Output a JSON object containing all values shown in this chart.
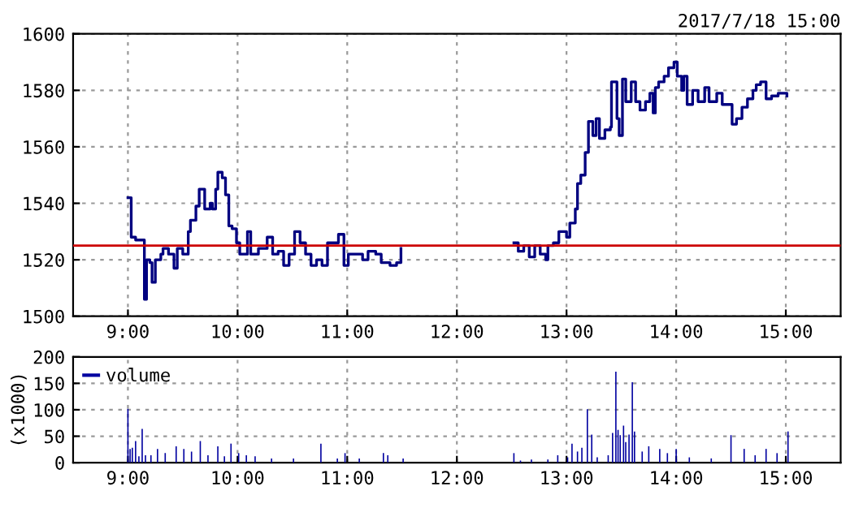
{
  "chart_data": [
    {
      "type": "step",
      "subtitle": "2017/7/18 15:00",
      "xlim": [
        8.5,
        15.5
      ],
      "ylim": [
        1500,
        1600
      ],
      "xticks": [
        {
          "value": 9,
          "label": "9:00"
        },
        {
          "value": 10,
          "label": "10:00"
        },
        {
          "value": 11,
          "label": "11:00"
        },
        {
          "value": 12,
          "label": "12:00"
        },
        {
          "value": 13,
          "label": "13:00"
        },
        {
          "value": 14,
          "label": "14:00"
        },
        {
          "value": 15,
          "label": "15:00"
        }
      ],
      "yticks": [
        1500,
        1520,
        1540,
        1560,
        1580,
        1600
      ],
      "grid": true,
      "line_style": "solid",
      "ref_lines": [
        {
          "axis": "y",
          "value": 1525,
          "color": "#cc0000"
        }
      ],
      "series": [
        {
          "color": "#000080",
          "x": [
            9.0,
            9.03,
            9.07,
            9.14,
            9.15,
            9.17,
            9.2,
            9.22,
            9.25,
            9.3,
            9.32,
            9.37,
            9.42,
            9.45,
            9.5,
            9.55,
            9.57,
            9.62,
            9.65,
            9.7,
            9.75,
            9.77,
            9.8,
            9.82,
            9.86,
            9.89,
            9.92,
            9.95,
            9.99,
            10.02,
            10.09,
            10.12,
            10.19,
            10.27,
            10.32,
            10.37,
            10.42,
            10.47,
            10.52,
            10.57,
            10.62,
            10.67,
            10.72,
            10.77,
            10.82,
            10.87,
            10.92,
            10.97,
            11.01,
            11.09,
            11.14,
            11.19,
            11.26,
            11.31,
            11.39,
            11.45,
            11.49
          ],
          "values": [
            1542,
            1528,
            1527,
            1527,
            1506,
            1520,
            1519,
            1512,
            1520,
            1522,
            1524,
            1522,
            1517,
            1524,
            1522,
            1530,
            1534,
            1539,
            1545,
            1538,
            1540,
            1538,
            1545,
            1551,
            1549,
            1543,
            1532,
            1531,
            1526,
            1522,
            1530,
            1522,
            1524,
            1528,
            1522,
            1523,
            1518,
            1522,
            1530,
            1526,
            1522,
            1518,
            1520,
            1518,
            1526,
            1526,
            1529,
            1518,
            1522,
            1522,
            1520,
            1523,
            1522,
            1519,
            1518,
            1519,
            1524
          ]
        },
        {
          "color": "#000080",
          "x": [
            12.52,
            12.56,
            12.61,
            12.66,
            12.71,
            12.76,
            12.81,
            12.83,
            12.88,
            12.93,
            13.0,
            13.03,
            13.08,
            13.1,
            13.13,
            13.17,
            13.2,
            13.24,
            13.27,
            13.3,
            13.35,
            13.4,
            13.41,
            13.46,
            13.48,
            13.51,
            13.54,
            13.59,
            13.63,
            13.67,
            13.72,
            13.76,
            13.79,
            13.81,
            13.84,
            13.89,
            13.93,
            13.98,
            14.01,
            14.05,
            14.07,
            14.1,
            14.15,
            14.2,
            14.26,
            14.3,
            14.37,
            14.42,
            14.47,
            14.51,
            14.55,
            14.6,
            14.65,
            14.7,
            14.73,
            14.77,
            14.82,
            14.87,
            14.93,
            15.01
          ],
          "values": [
            1526,
            1523,
            1525,
            1521,
            1525,
            1522,
            1520,
            1525,
            1526,
            1530,
            1528,
            1533,
            1538,
            1547,
            1550,
            1558,
            1569,
            1564,
            1570,
            1563,
            1566,
            1567,
            1583,
            1570,
            1564,
            1584,
            1576,
            1583,
            1576,
            1573,
            1576,
            1579,
            1572,
            1581,
            1583,
            1585,
            1588,
            1590,
            1585,
            1580,
            1585,
            1575,
            1580,
            1576,
            1581,
            1576,
            1579,
            1575,
            1575,
            1568,
            1570,
            1574,
            1577,
            1580,
            1582,
            1583,
            1577,
            1578,
            1579,
            1578
          ]
        }
      ]
    },
    {
      "type": "bar",
      "ylabel": "(x1000)",
      "xlim": [
        8.5,
        15.5
      ],
      "ylim": [
        0,
        200
      ],
      "xticks": [
        {
          "value": 9,
          "label": "9:00"
        },
        {
          "value": 10,
          "label": "10:00"
        },
        {
          "value": 11,
          "label": "11:00"
        },
        {
          "value": 12,
          "label": "12:00"
        },
        {
          "value": 13,
          "label": "13:00"
        },
        {
          "value": 14,
          "label": "14:00"
        },
        {
          "value": 15,
          "label": "15:00"
        }
      ],
      "yticks": [
        0,
        50,
        100,
        150,
        200
      ],
      "grid": true,
      "legend": "top left",
      "series": [
        {
          "name": "volume",
          "color": "#0000a0",
          "x": [
            9.0,
            9.02,
            9.04,
            9.07,
            9.1,
            9.13,
            9.16,
            9.21,
            9.27,
            9.34,
            9.44,
            9.51,
            9.58,
            9.66,
            9.73,
            9.82,
            9.88,
            9.94,
            10.01,
            10.08,
            10.16,
            10.31,
            10.51,
            10.76,
            10.91,
            10.98,
            11.11,
            11.33,
            11.37,
            11.51,
            12.52,
            12.58,
            12.68,
            12.83,
            12.92,
            13.01,
            13.05,
            13.1,
            13.14,
            13.19,
            13.23,
            13.28,
            13.38,
            13.42,
            13.45,
            13.47,
            13.49,
            13.52,
            13.54,
            13.57,
            13.6,
            13.62,
            13.69,
            13.75,
            13.85,
            13.92,
            14.0,
            14.12,
            14.32,
            14.5,
            14.62,
            14.72,
            14.82,
            14.92,
            15.02
          ],
          "values": [
            102,
            26,
            28,
            41,
            12,
            64,
            14,
            14,
            26,
            18,
            31,
            26,
            21,
            41,
            14,
            31,
            12,
            36,
            18,
            14,
            12,
            8,
            8,
            36,
            8,
            18,
            8,
            18,
            14,
            8,
            18,
            4,
            6,
            6,
            14,
            10,
            36,
            21,
            28,
            101,
            53,
            10,
            14,
            56,
            172,
            62,
            52,
            70,
            39,
            53,
            152,
            59,
            21,
            31,
            26,
            18,
            26,
            10,
            8,
            52,
            26,
            14,
            26,
            18,
            59
          ]
        }
      ]
    }
  ]
}
